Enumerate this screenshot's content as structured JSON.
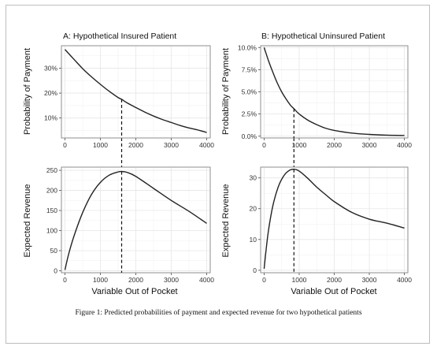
{
  "caption": "Figure 1: Predicted probabilities of payment and expected revenue for two hypothetical patients",
  "chart_data": [
    {
      "type": "line",
      "panel": "top-left",
      "title": "A: Hypothetical Insured Patient",
      "xlabel": "",
      "ylabel": "Probability of Payment",
      "xlim": [
        -100,
        4100
      ],
      "ylim": [
        0.02,
        0.39
      ],
      "xticks": [
        0,
        1000,
        2000,
        3000,
        4000
      ],
      "xtick_labels": [
        "0",
        "1000",
        "2000",
        "3000",
        "4000"
      ],
      "yticks": [
        0.1,
        0.2,
        0.3
      ],
      "ytick_labels": [
        "10%",
        "20%",
        "30%"
      ],
      "x": [
        0,
        250,
        500,
        750,
        1000,
        1250,
        1500,
        1600,
        1750,
        2000,
        2250,
        2500,
        2750,
        3000,
        3250,
        3500,
        3750,
        4000
      ],
      "y": [
        0.375,
        0.336,
        0.298,
        0.265,
        0.235,
        0.207,
        0.182,
        0.175,
        0.161,
        0.142,
        0.124,
        0.108,
        0.094,
        0.082,
        0.07,
        0.06,
        0.052,
        0.042
      ],
      "vline_x": 1600
    },
    {
      "type": "line",
      "panel": "top-right",
      "title": "B: Hypothetical Uninsured Patient",
      "xlabel": "",
      "ylabel": "Probability of Payment",
      "xlim": [
        -100,
        4100
      ],
      "ylim": [
        -0.002,
        0.102
      ],
      "xticks": [
        0,
        1000,
        2000,
        3000,
        4000
      ],
      "xtick_labels": [
        "0",
        "1000",
        "2000",
        "3000",
        "4000"
      ],
      "yticks": [
        0.0,
        0.025,
        0.05,
        0.075,
        0.1
      ],
      "ytick_labels": [
        "0.0%",
        "2.5%",
        "5.0%",
        "7.5%",
        "10.0%"
      ],
      "x": [
        0,
        125,
        250,
        375,
        500,
        625,
        750,
        850,
        1000,
        1250,
        1500,
        1750,
        2000,
        2500,
        3000,
        3500,
        4000
      ],
      "y": [
        0.1,
        0.085,
        0.072,
        0.06,
        0.05,
        0.042,
        0.035,
        0.031,
        0.025,
        0.018,
        0.013,
        0.009,
        0.0065,
        0.0035,
        0.002,
        0.0012,
        0.0008
      ],
      "vline_x": 850
    },
    {
      "type": "line",
      "panel": "bottom-left",
      "title": "",
      "xlabel": "Variable Out of Pocket",
      "ylabel": "Expected Revenue",
      "xlim": [
        -100,
        4100
      ],
      "ylim": [
        -5,
        258
      ],
      "xticks": [
        0,
        1000,
        2000,
        3000,
        4000
      ],
      "xtick_labels": [
        "0",
        "1000",
        "2000",
        "3000",
        "4000"
      ],
      "yticks": [
        0,
        50,
        100,
        150,
        200,
        250
      ],
      "ytick_labels": [
        "0",
        "50",
        "100",
        "150",
        "200",
        "250"
      ],
      "x": [
        0,
        100,
        250,
        500,
        750,
        1000,
        1250,
        1500,
        1600,
        1750,
        2000,
        2500,
        3000,
        3500,
        4000
      ],
      "y": [
        2,
        40,
        85,
        145,
        190,
        220,
        238,
        246,
        247,
        245,
        235,
        205,
        175,
        148,
        118
      ],
      "vline_x": 1600
    },
    {
      "type": "line",
      "panel": "bottom-right",
      "title": "",
      "xlabel": "Variable Out of Pocket",
      "ylabel": "Expected Revenue",
      "xlim": [
        -100,
        4100
      ],
      "ylim": [
        -0.8,
        33.5
      ],
      "xticks": [
        0,
        1000,
        2000,
        3000,
        4000
      ],
      "xtick_labels": [
        "0",
        "1000",
        "2000",
        "3000",
        "4000"
      ],
      "yticks": [
        0,
        10,
        20,
        30
      ],
      "ytick_labels": [
        "0",
        "10",
        "20",
        "30"
      ],
      "x": [
        0,
        50,
        125,
        250,
        400,
        550,
        700,
        850,
        1000,
        1250,
        1500,
        1750,
        2000,
        2500,
        3000,
        3500,
        4000
      ],
      "y": [
        0.5,
        6,
        13,
        21,
        27,
        30.5,
        32.3,
        32.8,
        32.2,
        29.8,
        27.0,
        24.6,
        22.3,
        18.8,
        16.6,
        15.3,
        13.7
      ],
      "vline_x": 850
    }
  ]
}
